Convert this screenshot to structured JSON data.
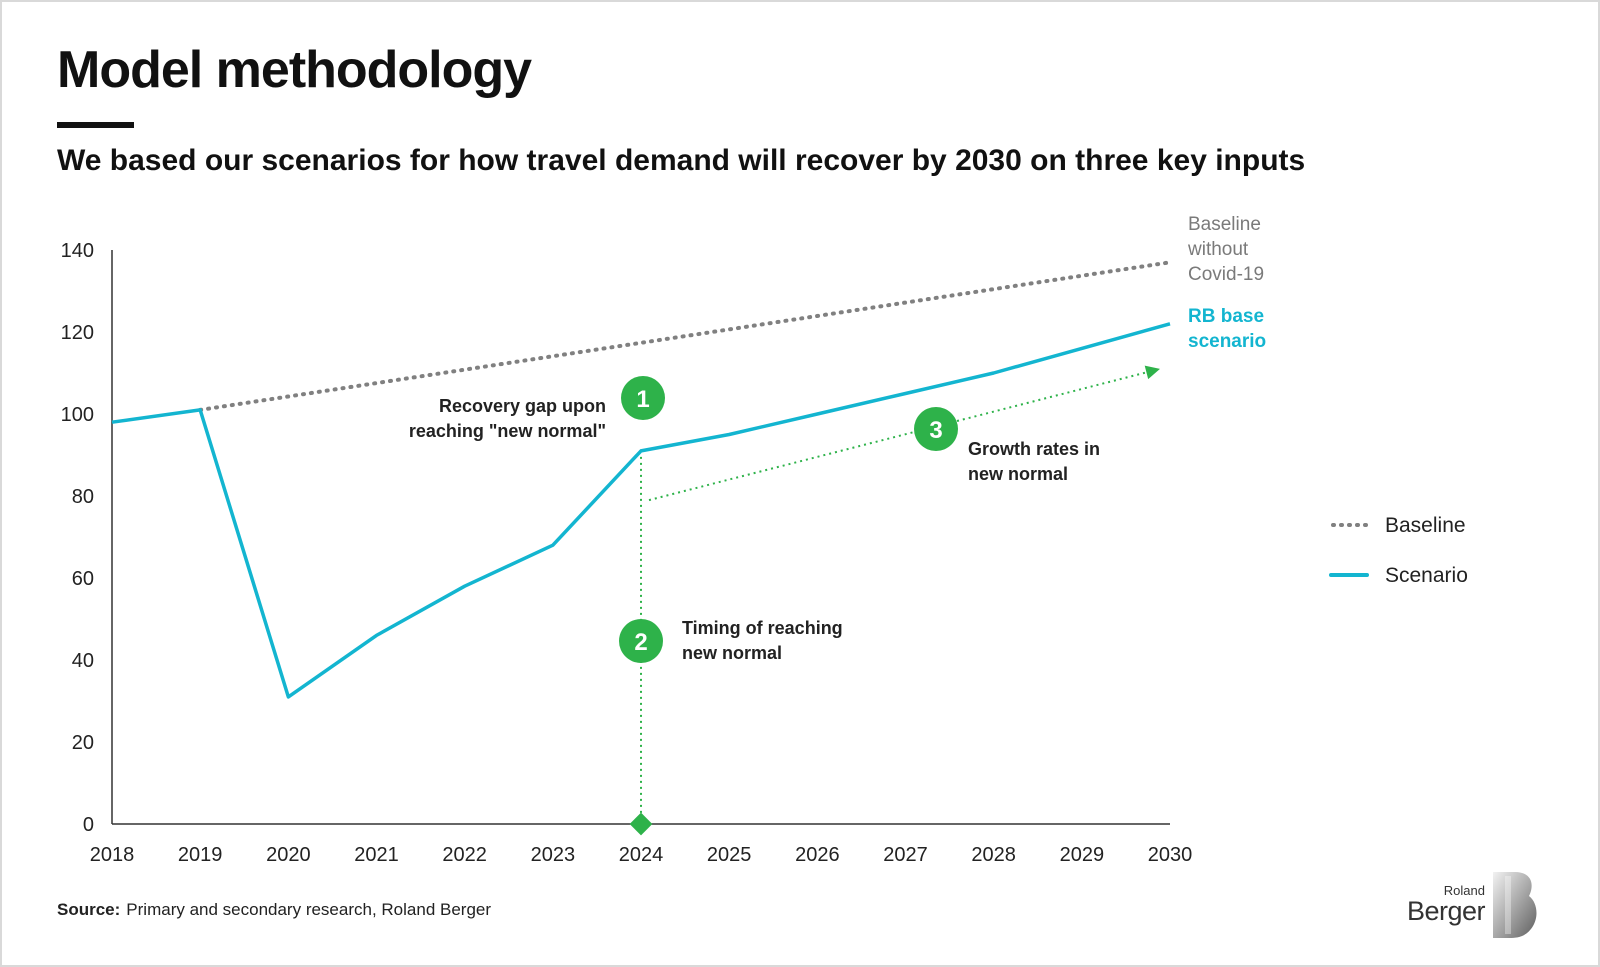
{
  "header": {
    "title": "Model methodology",
    "subtitle": "We based our scenarios for how travel demand will recover by 2030 on three key inputs"
  },
  "chart_data": {
    "type": "line",
    "x": [
      2018,
      2019,
      2020,
      2021,
      2022,
      2023,
      2024,
      2025,
      2026,
      2027,
      2028,
      2029,
      2030
    ],
    "x_tick_labels": [
      "2018",
      "2019",
      "2020",
      "2021",
      "2022",
      "2023",
      "2024",
      "2025",
      "2026",
      "2027",
      "2028",
      "2029",
      "2030"
    ],
    "ylim": [
      0,
      140
    ],
    "y_ticks": [
      0,
      20,
      40,
      60,
      80,
      100,
      120,
      140
    ],
    "y_tick_labels": [
      "0",
      "20",
      "40",
      "60",
      "80",
      "100",
      "120",
      "140"
    ],
    "grid": false,
    "legend_position": "right",
    "series": [
      {
        "name": "Baseline",
        "style": "dotted",
        "color": "#808080",
        "x": [
          2019,
          2030
        ],
        "values": [
          101,
          137
        ]
      },
      {
        "name": "Scenario",
        "style": "solid",
        "color": "#13b5d0",
        "x": [
          2018,
          2019,
          2020,
          2021,
          2022,
          2023,
          2024,
          2025,
          2026,
          2027,
          2028,
          2029,
          2030
        ],
        "values": [
          98,
          101,
          31,
          46,
          58,
          68,
          91,
          95,
          100,
          105,
          110,
          116,
          122
        ]
      }
    ],
    "series_end_labels": {
      "baseline": [
        "Baseline",
        "without",
        "Covid-19"
      ],
      "scenario": [
        "RB base",
        "scenario"
      ]
    },
    "legend": [
      {
        "label": "Baseline",
        "style": "dotted",
        "color": "#808080"
      },
      {
        "label": "Scenario",
        "style": "solid",
        "color": "#13b5d0"
      }
    ],
    "annotations": [
      {
        "number": "1",
        "lines": [
          "Recovery gap upon",
          "reaching \"new normal\""
        ]
      },
      {
        "number": "2",
        "lines": [
          "Timing of reaching",
          "new normal"
        ]
      },
      {
        "number": "3",
        "lines": [
          "Growth rates in",
          "new normal"
        ]
      }
    ],
    "new_normal_year": 2024,
    "growth_arrow": {
      "from": [
        2024,
        79
      ],
      "to": [
        2030,
        111
      ]
    },
    "accent_color": "#2eb24a"
  },
  "footer": {
    "source_label": "Source:",
    "source_text": "Primary and secondary research, Roland Berger"
  },
  "logo": {
    "line1": "Roland",
    "line2": "Berger"
  }
}
